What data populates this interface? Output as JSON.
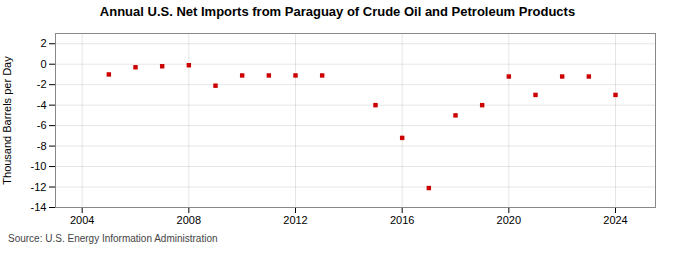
{
  "chart_data": {
    "type": "scatter",
    "title": "Annual U.S. Net Imports from Paraguay of Crude Oil and Petroleum Products",
    "ylabel": "Thousand Barrels per Day",
    "source": "Source: U.S. Energy Information Administration",
    "x": [
      2005,
      2006,
      2007,
      2008,
      2009,
      2010,
      2011,
      2012,
      2013,
      2015,
      2016,
      2017,
      2018,
      2019,
      2020,
      2021,
      2022,
      2023,
      2024
    ],
    "values": [
      -1.0,
      -0.3,
      -0.2,
      -0.1,
      -2.1,
      -1.1,
      -1.1,
      -1.1,
      -1.1,
      -4.0,
      -7.2,
      -12.1,
      -5.0,
      -4.0,
      -1.2,
      -3.0,
      -1.2,
      -1.2,
      -3.0
    ],
    "color": "#cc0000",
    "marker": "square",
    "xlim": [
      2003.0,
      2025.5
    ],
    "ylim": [
      -14,
      3
    ],
    "xticks": [
      2004,
      2008,
      2012,
      2016,
      2020,
      2024
    ],
    "yticks": [
      2,
      0,
      -2,
      -4,
      -6,
      -8,
      -10,
      -12,
      -14
    ],
    "grid": true
  }
}
